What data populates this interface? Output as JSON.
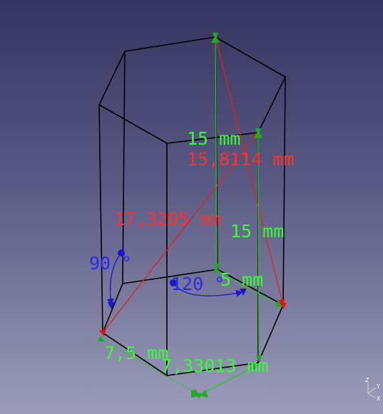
{
  "colors": {
    "wire": "#000000",
    "linear_dim": "#22cc22",
    "linear_label": "#33ff33",
    "distance_dim": "#ff2020",
    "distance_label": "#ff3030",
    "angle_dim": "#1a1adc",
    "angle_label": "#2a2af0"
  },
  "dimensions": {
    "height_top": "15 mm",
    "distance_short": "15,8114 mm",
    "distance_long": "17,3205 mm",
    "height_right": "15 mm",
    "angle_vertical": "90 °",
    "angle_hex": "120 °",
    "edge_top": "5 mm",
    "edge_front": "7,5 mm",
    "edge_bottom": "7,33013 mm"
  },
  "axis": {
    "z": "Z",
    "y": "Y",
    "x": "X"
  }
}
